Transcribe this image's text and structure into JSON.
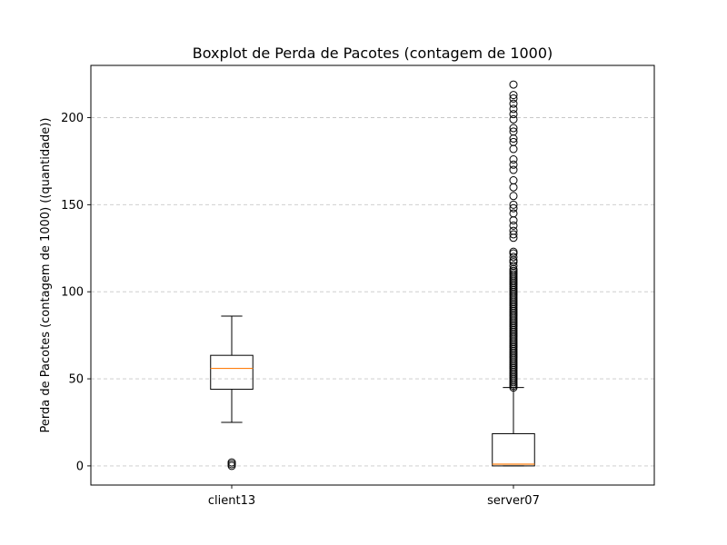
{
  "chart_data": {
    "type": "boxplot",
    "title": "Boxplot de Perda de Pacotes (contagem de 1000)",
    "xlabel": "",
    "ylabel": "Perda de Pacotes (contagem de 1000) ((quantidade))",
    "ylim": [
      -11,
      230
    ],
    "yticks": [
      0,
      50,
      100,
      150,
      200
    ],
    "grid": "y-dashed",
    "colors": {
      "box": "#000000",
      "median": "#ff7f0e",
      "grid": "#c8c8c8"
    },
    "categories": [
      "client13",
      "server07"
    ],
    "boxes": [
      {
        "name": "client13",
        "whisker_low": 25,
        "q1": 44,
        "median": 56,
        "q3": 63.5,
        "whisker_high": 86,
        "outliers": [
          0,
          1,
          2
        ]
      },
      {
        "name": "server07",
        "whisker_low": 0,
        "q1": 0,
        "median": 1,
        "q3": 18.5,
        "whisker_high": 45,
        "outliers": [
          45,
          46,
          47,
          48,
          49,
          50,
          51,
          52,
          53,
          54,
          55,
          56,
          57,
          58,
          59,
          60,
          61,
          62,
          63,
          64,
          65,
          66,
          67,
          68,
          69,
          70,
          71,
          72,
          73,
          74,
          75,
          76,
          77,
          78,
          79,
          80,
          81,
          82,
          83,
          84,
          85,
          86,
          87,
          88,
          89,
          90,
          91,
          92,
          93,
          94,
          95,
          96,
          97,
          98,
          99,
          100,
          101,
          102,
          103,
          104,
          105,
          106,
          107,
          108,
          109,
          110,
          111,
          112,
          113,
          115,
          117,
          118,
          120,
          122,
          123,
          131,
          133,
          135,
          138,
          141,
          145,
          148,
          150,
          155,
          160,
          164,
          170,
          173,
          176,
          182,
          186,
          188,
          192,
          194,
          199,
          202,
          205,
          208,
          211,
          213,
          219
        ]
      }
    ]
  }
}
